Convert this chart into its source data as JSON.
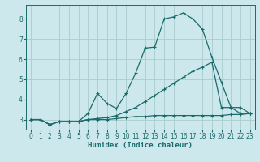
{
  "xlabel": "Humidex (Indice chaleur)",
  "bg_color": "#cce8ec",
  "grid_color": "#aacccc",
  "line_color": "#1a6b6b",
  "xlim": [
    -0.5,
    23.5
  ],
  "ylim": [
    2.5,
    8.7
  ],
  "yticks": [
    3,
    4,
    5,
    6,
    7,
    8
  ],
  "xticks": [
    0,
    1,
    2,
    3,
    4,
    5,
    6,
    7,
    8,
    9,
    10,
    11,
    12,
    13,
    14,
    15,
    16,
    17,
    18,
    19,
    20,
    21,
    22,
    23
  ],
  "line1_x": [
    0,
    1,
    2,
    3,
    4,
    5,
    6,
    7,
    8,
    9,
    10,
    11,
    12,
    13,
    14,
    15,
    16,
    17,
    18,
    19,
    20,
    21,
    22,
    23
  ],
  "line1_y": [
    3.0,
    3.0,
    2.75,
    2.9,
    2.9,
    2.9,
    3.0,
    3.0,
    3.0,
    3.05,
    3.1,
    3.15,
    3.15,
    3.2,
    3.2,
    3.2,
    3.2,
    3.2,
    3.2,
    3.2,
    3.2,
    3.25,
    3.25,
    3.3
  ],
  "line2_x": [
    0,
    1,
    2,
    3,
    4,
    5,
    6,
    7,
    8,
    9,
    10,
    11,
    12,
    13,
    14,
    15,
    16,
    17,
    18,
    19,
    20,
    21,
    22,
    23
  ],
  "line2_y": [
    3.0,
    3.0,
    2.75,
    2.9,
    2.9,
    2.9,
    3.0,
    3.05,
    3.1,
    3.2,
    3.4,
    3.6,
    3.9,
    4.2,
    4.5,
    4.8,
    5.1,
    5.4,
    5.6,
    5.85,
    3.6,
    3.6,
    3.3,
    3.3
  ],
  "line3_x": [
    0,
    1,
    2,
    3,
    4,
    5,
    6,
    7,
    8,
    9,
    10,
    11,
    12,
    13,
    14,
    15,
    16,
    17,
    18,
    19,
    20,
    21,
    22,
    23
  ],
  "line3_y": [
    3.0,
    3.0,
    2.75,
    2.9,
    2.9,
    2.9,
    3.3,
    4.3,
    3.8,
    3.55,
    4.3,
    5.3,
    6.55,
    6.6,
    8.0,
    8.1,
    8.3,
    8.0,
    7.5,
    6.1,
    4.85,
    3.6,
    3.6,
    3.3
  ]
}
